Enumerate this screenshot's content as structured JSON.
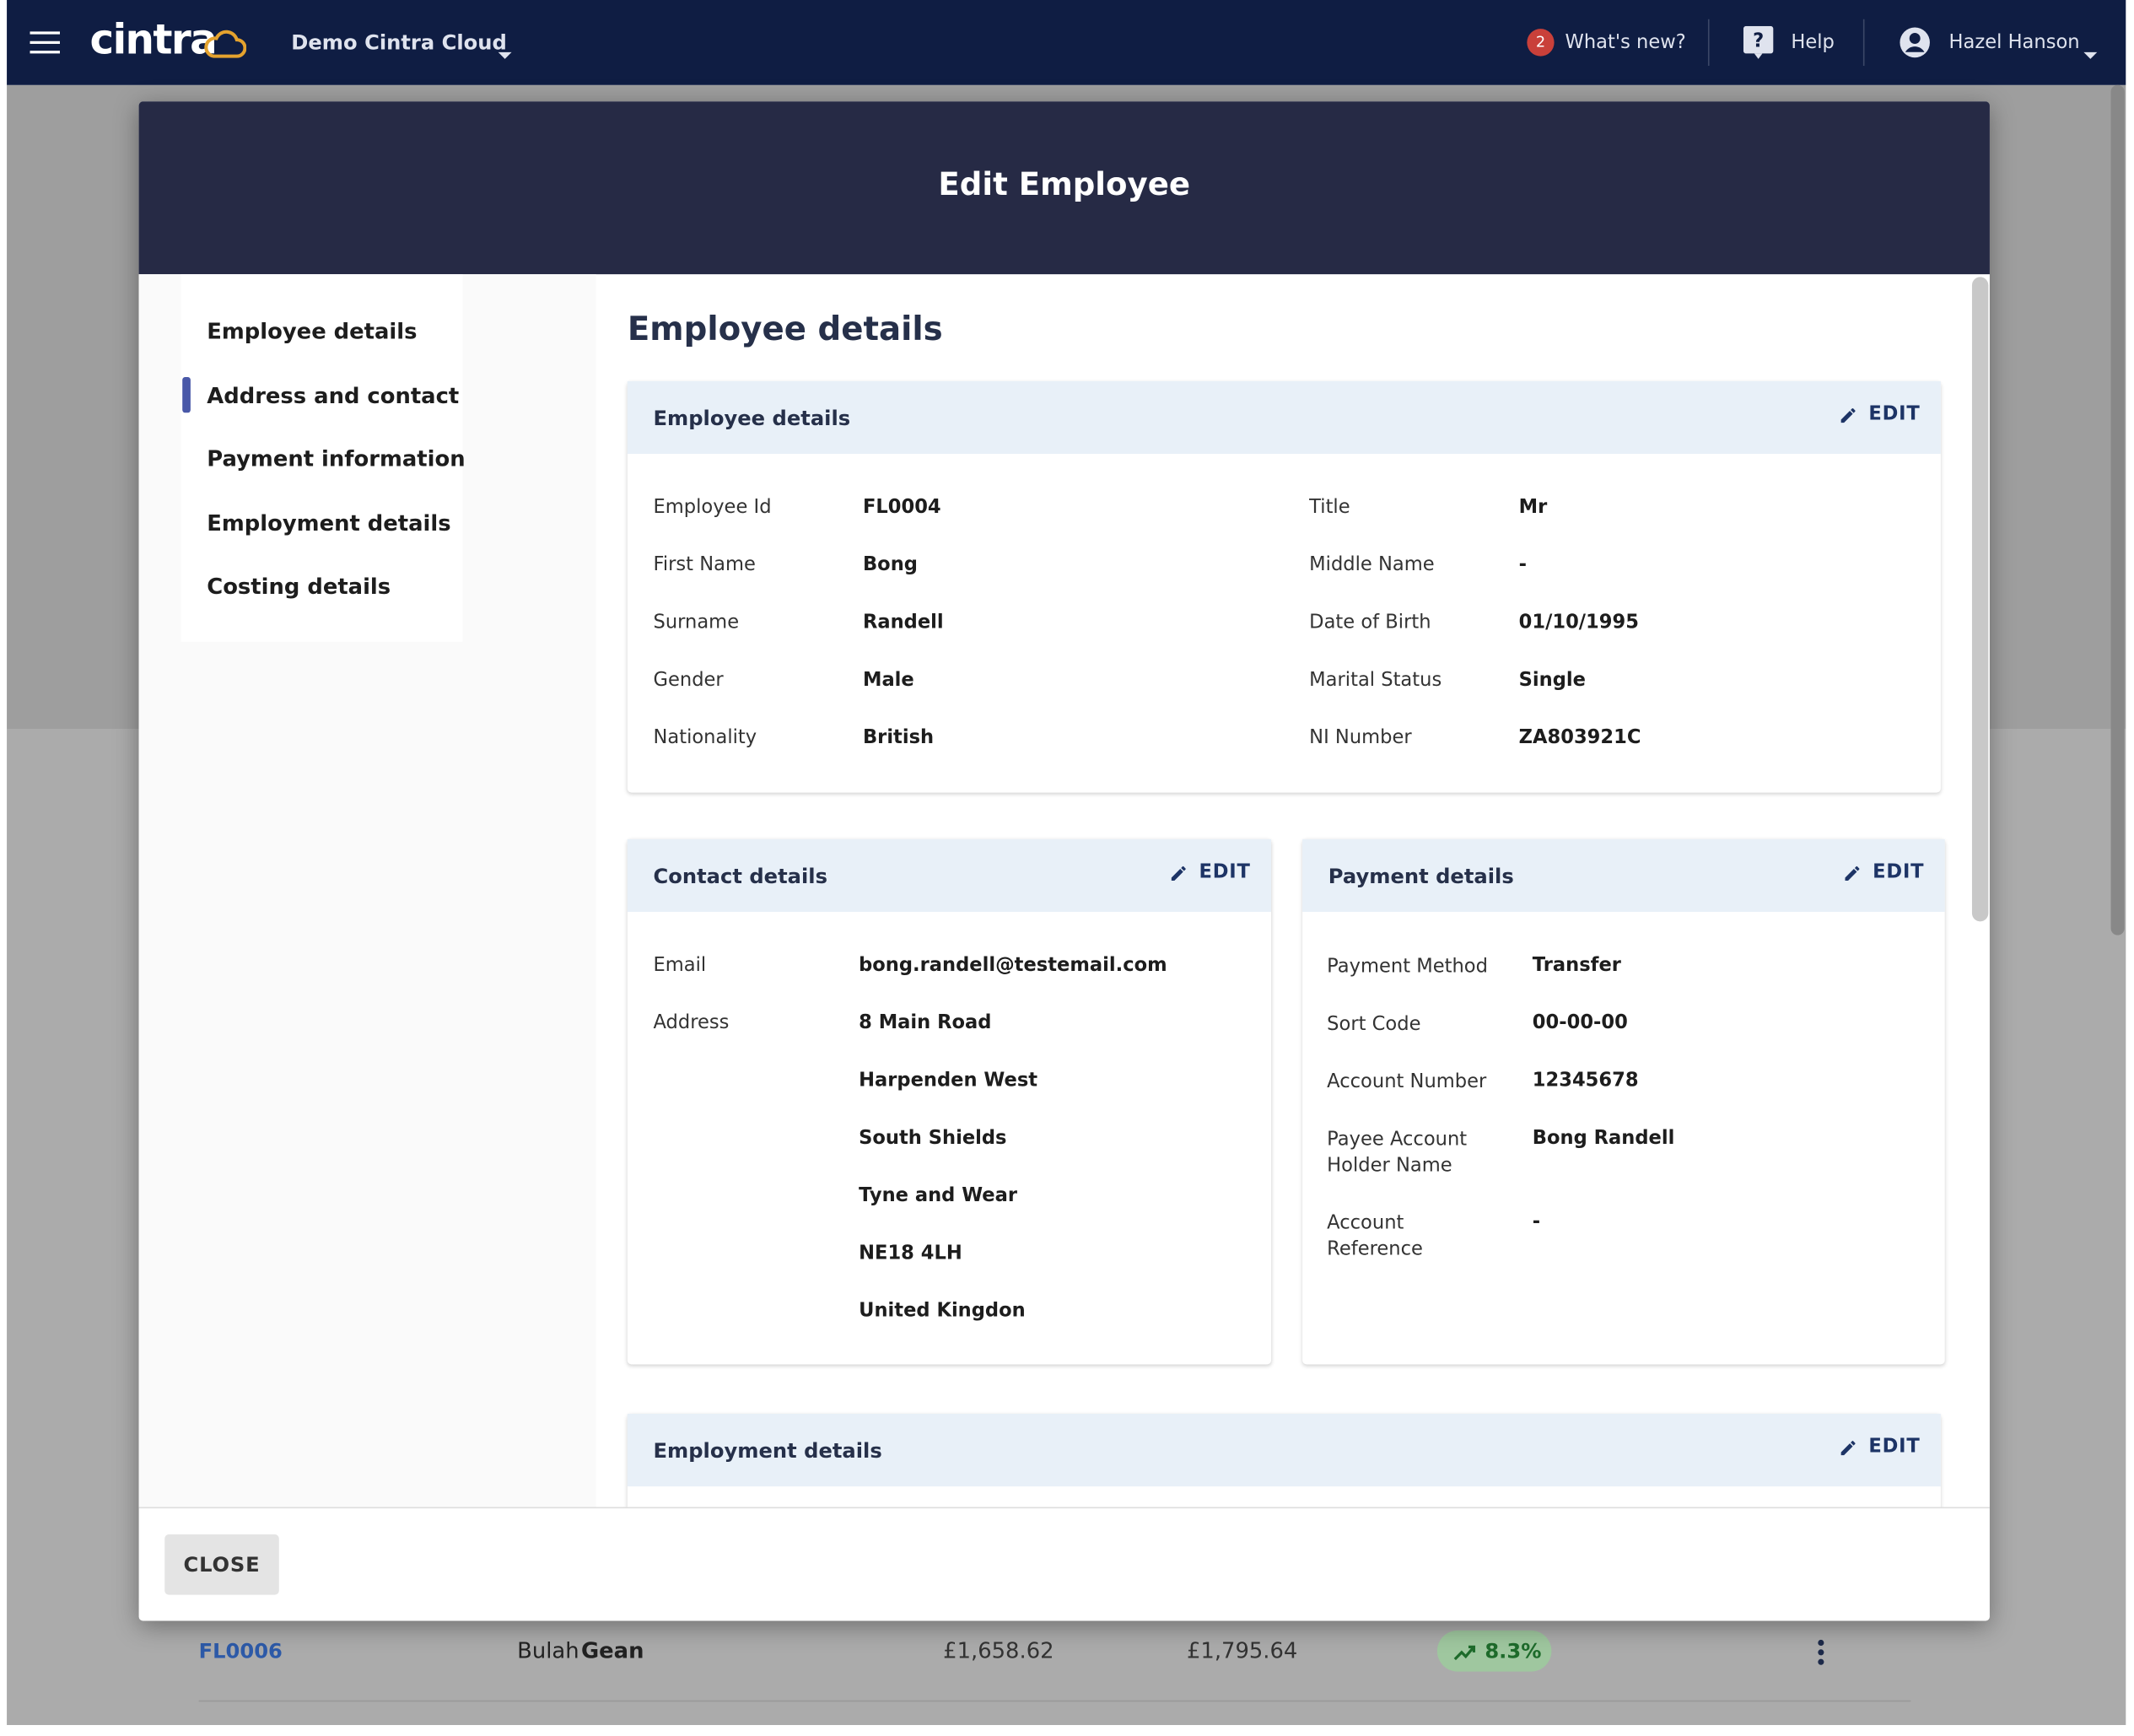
{
  "nav": {
    "brand": "cintra",
    "org": "Demo Cintra Cloud",
    "whats_new_count": 2,
    "whats_new": "What's new?",
    "help": "Help",
    "user": "Hazel Hanson"
  },
  "modal": {
    "title": "Edit Employee",
    "sidebar": [
      "Employee details",
      "Address and contact",
      "Payment information",
      "Employment details",
      "Costing details"
    ],
    "heading": "Employee details",
    "edit": "EDIT",
    "employee_card": {
      "title": "Employee details",
      "left": [
        [
          "Employee Id",
          "FL0004"
        ],
        [
          "First Name",
          "Bong"
        ],
        [
          "Surname",
          "Randell"
        ],
        [
          "Gender",
          "Male"
        ],
        [
          "Nationality",
          "British"
        ]
      ],
      "right": [
        [
          "Title",
          "Mr"
        ],
        [
          "Middle Name",
          "-"
        ],
        [
          "Date of Birth",
          "01/10/1995"
        ],
        [
          "Marital Status",
          "Single"
        ],
        [
          "NI Number",
          "ZA803921C"
        ]
      ]
    },
    "contact_card": {
      "title": "Contact details",
      "email_label": "Email",
      "email": "bong.randell@testemail.com",
      "address_label": "Address",
      "address": [
        "8 Main Road",
        "Harpenden West",
        "South Shields",
        "Tyne and Wear",
        "NE18 4LH",
        "United Kingdon"
      ]
    },
    "payment_card": {
      "title": "Payment details",
      "rows": [
        [
          "Payment Method",
          "Transfer"
        ],
        [
          "Sort Code",
          "00-00-00"
        ],
        [
          "Account Number",
          "12345678"
        ],
        [
          "Payee Account Holder Name",
          "Bong Randell"
        ],
        [
          "Account Reference",
          "-"
        ]
      ]
    },
    "employment_card": {
      "title": "Employment details"
    },
    "close": "CLOSE"
  },
  "background_row": {
    "id": "FL0006",
    "first_name": "Bulah",
    "surname": "Gean",
    "amount_1": "£1,658.62",
    "amount_2": "£1,795.64",
    "change": "8.3%"
  }
}
